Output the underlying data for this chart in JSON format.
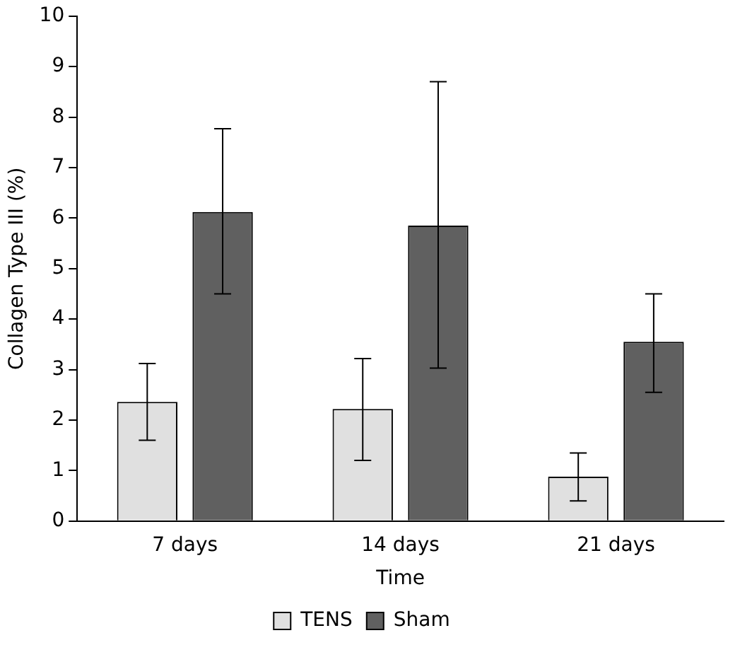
{
  "chart_data": {
    "type": "bar",
    "xlabel": "Time",
    "ylabel": "Collagen Type III (%)",
    "categories": [
      "7 days",
      "14 days",
      "21 days"
    ],
    "series": [
      {
        "name": "TENS",
        "color": "#e0e0e0",
        "values": [
          2.36,
          2.22,
          0.88
        ],
        "errors": [
          [
            1.6,
            3.12
          ],
          [
            1.2,
            3.22
          ],
          [
            0.4,
            1.35
          ]
        ]
      },
      {
        "name": "Sham",
        "color": "#606060",
        "values": [
          6.12,
          5.85,
          3.55
        ],
        "errors": [
          [
            4.5,
            7.77
          ],
          [
            3.03,
            8.7
          ],
          [
            2.55,
            4.5
          ]
        ]
      }
    ],
    "ylim": [
      0,
      10
    ],
    "yticks": [
      0,
      1,
      2,
      3,
      4,
      5,
      6,
      7,
      8,
      9,
      10
    ],
    "grid": false,
    "legend": "bottom"
  }
}
